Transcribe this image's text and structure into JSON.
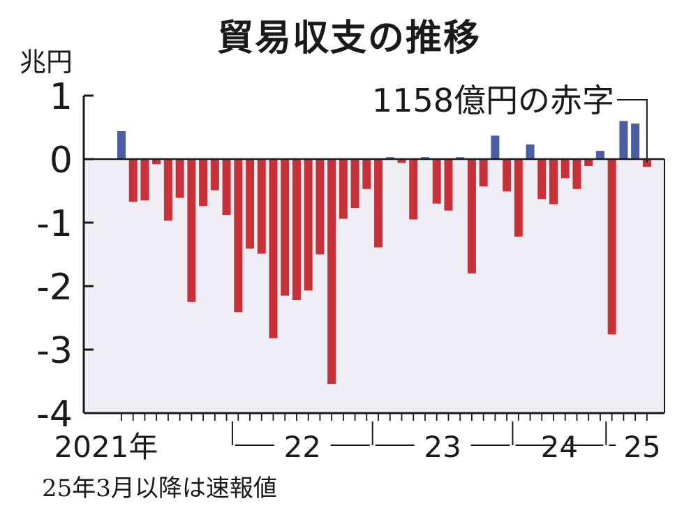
{
  "chart_data": {
    "type": "bar",
    "title": "貿易収支の推移",
    "ylabel": "兆円",
    "ylim": [
      -4,
      1
    ],
    "yticks": [
      "1",
      "0",
      "-1",
      "-2",
      "-3",
      "-4"
    ],
    "x_labels": [
      "2021年",
      "22",
      "23",
      "24",
      "25"
    ],
    "annotation": "1158億円の赤字",
    "note": "25年3月以降は速報値",
    "colors": {
      "surplus": "#4a5fa3",
      "deficit": "#c8313a",
      "plot_bg": "#eeeef4"
    },
    "values": [
      0.44,
      -0.67,
      -0.65,
      -0.08,
      -0.97,
      -0.61,
      -2.25,
      -0.74,
      -0.49,
      -0.88,
      -2.41,
      -1.41,
      -1.49,
      -2.82,
      -2.15,
      -2.22,
      -2.07,
      -1.5,
      -3.54,
      -0.94,
      -0.77,
      -0.47,
      -1.39,
      0.03,
      -0.06,
      -0.95,
      0.03,
      -0.7,
      -0.81,
      0.03,
      -1.8,
      -0.43,
      0.37,
      -0.51,
      -1.22,
      0.23,
      -0.63,
      -0.71,
      -0.3,
      -0.47,
      -0.11,
      0.13,
      -2.76,
      0.6,
      0.56,
      -0.12
    ]
  }
}
